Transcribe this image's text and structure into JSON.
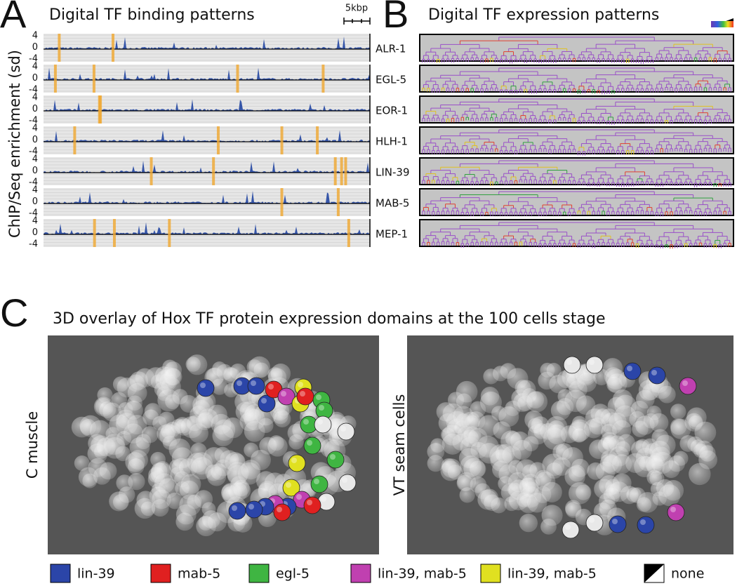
{
  "panel_a": {
    "label": "A",
    "title": "Digital TF binding patterns",
    "scale_label": "5kbp",
    "y_axis_label": "ChIP/Seq enrichment (sd)",
    "tick_labels": [
      "4",
      "0",
      "-4"
    ],
    "tracks": [
      "ALR-1",
      "EGL-5",
      "EOR-1",
      "HLH-1",
      "LIN-39",
      "MAB-5",
      "MEP-1"
    ]
  },
  "panel_b": {
    "label": "B",
    "title": "Digital TF expression patterns"
  },
  "panel_c": {
    "label": "C",
    "title": "3D overlay of Hox TF protein expression domains at the 100 cells stage",
    "images": [
      "C muscle",
      "VT seam cells"
    ],
    "legend": [
      "lin-39",
      "mab-5",
      "egl-5",
      "lin-39, mab-5",
      "lin-39, mab-5",
      "none"
    ]
  }
}
